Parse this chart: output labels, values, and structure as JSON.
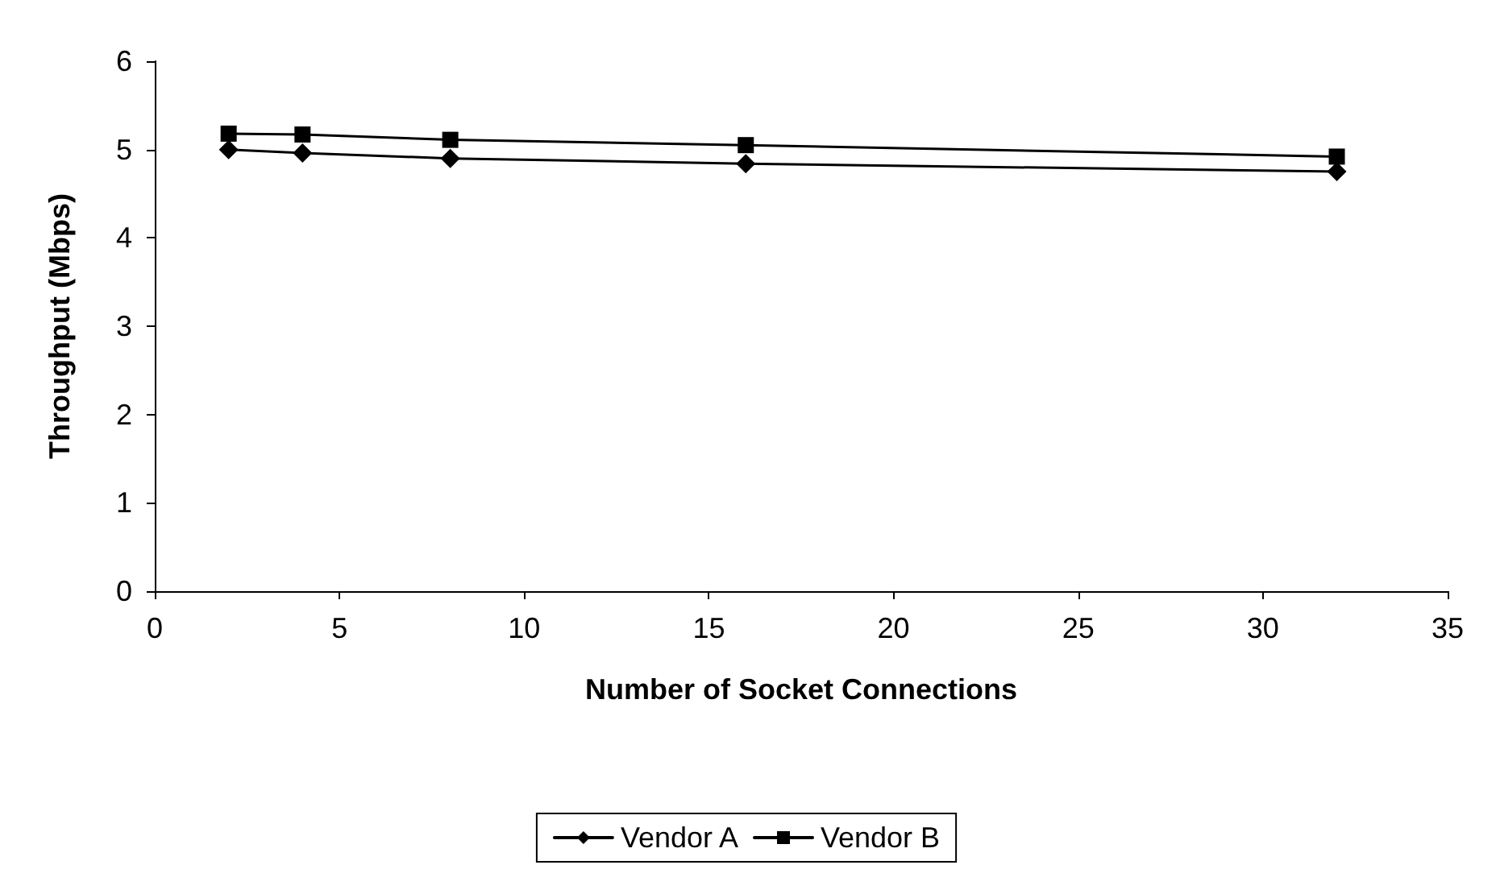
{
  "chart_data": {
    "type": "line",
    "xlabel": "Number of Socket Connections",
    "ylabel": "Throughput (Mbps)",
    "x": [
      2,
      4,
      8,
      16,
      32
    ],
    "series": [
      {
        "name": "Vendor A",
        "color": "#000000",
        "marker": "diamond",
        "values": [
          5.0,
          4.96,
          4.9,
          4.84,
          4.75
        ]
      },
      {
        "name": "Vendor B",
        "color": "#000000",
        "marker": "square",
        "values": [
          5.18,
          5.17,
          5.11,
          5.05,
          4.92
        ]
      }
    ],
    "xlim": [
      0,
      35
    ],
    "xticks": [
      0,
      5,
      10,
      15,
      20,
      25,
      30,
      35
    ],
    "ylim": [
      0,
      6
    ],
    "yticks": [
      0,
      1,
      2,
      3,
      4,
      5,
      6
    ],
    "grid": false,
    "legend": "bottom",
    "line_style": "solid"
  }
}
